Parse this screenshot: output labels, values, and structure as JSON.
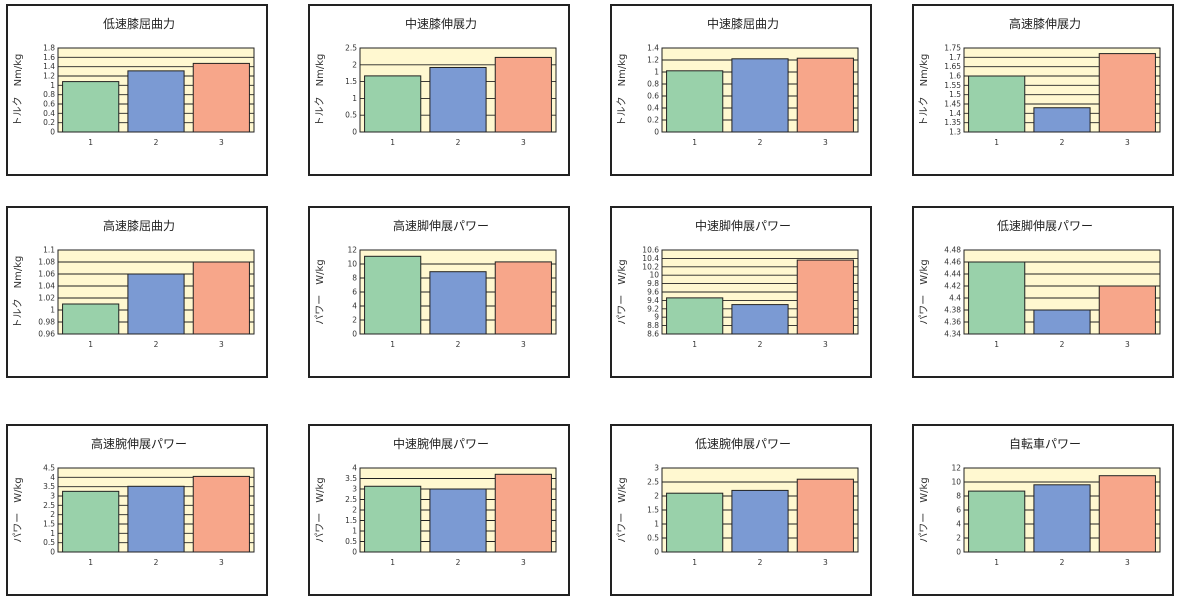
{
  "colors": {
    "plot_background": "#fff8d0",
    "gridline": "#222222",
    "series": [
      "#99d1aa",
      "#7b9ad3",
      "#f7a68a"
    ]
  },
  "chart_data": [
    {
      "type": "bar",
      "title": "低速膝屈曲力",
      "ylabel": "トルク　Nm/kg",
      "categories": [
        "1",
        "2",
        "3"
      ],
      "values": [
        1.08,
        1.31,
        1.47
      ],
      "ylim": [
        0,
        1.8
      ],
      "yticks": [
        0,
        0.2,
        0.4,
        0.6,
        0.8,
        1,
        1.2,
        1.4,
        1.6,
        1.8
      ],
      "grid": true,
      "legend": "none"
    },
    {
      "type": "bar",
      "title": "中速膝伸展力",
      "ylabel": "トルク　Nm/kg",
      "categories": [
        "1",
        "2",
        "3"
      ],
      "values": [
        1.67,
        1.92,
        2.22
      ],
      "ylim": [
        0,
        2.5
      ],
      "yticks": [
        0,
        0.5,
        1,
        1.5,
        2,
        2.5
      ],
      "grid": true,
      "legend": "none"
    },
    {
      "type": "bar",
      "title": "中速膝屈曲力",
      "ylabel": "トルク　Nm/kg",
      "categories": [
        "1",
        "2",
        "3"
      ],
      "values": [
        1.02,
        1.22,
        1.23
      ],
      "ylim": [
        0,
        1.4
      ],
      "yticks": [
        0,
        0.2,
        0.4,
        0.6,
        0.8,
        1,
        1.2,
        1.4
      ],
      "grid": true,
      "legend": "none"
    },
    {
      "type": "bar",
      "title": "高速膝伸展力",
      "ylabel": "トルク　Nm/kg",
      "categories": [
        "1",
        "2",
        "3"
      ],
      "values": [
        1.6,
        1.43,
        1.72
      ],
      "ylim": [
        1.3,
        1.75
      ],
      "yticks": [
        1.3,
        1.35,
        1.4,
        1.45,
        1.5,
        1.55,
        1.6,
        1.65,
        1.7,
        1.75
      ],
      "grid": true,
      "legend": "none"
    },
    {
      "type": "bar",
      "title": "高速膝屈曲力",
      "ylabel": "トルク　Nm/kg",
      "categories": [
        "1",
        "2",
        "3"
      ],
      "values": [
        1.01,
        1.06,
        1.08
      ],
      "ylim": [
        0.96,
        1.1
      ],
      "yticks": [
        0.96,
        0.98,
        1,
        1.02,
        1.04,
        1.06,
        1.08,
        1.1
      ],
      "grid": true,
      "legend": "none"
    },
    {
      "type": "bar",
      "title": "高速脚伸展パワー",
      "ylabel": "パワー　W/kg",
      "categories": [
        "1",
        "2",
        "3"
      ],
      "values": [
        11.1,
        8.9,
        10.3
      ],
      "ylim": [
        0,
        12
      ],
      "yticks": [
        0,
        2,
        4,
        6,
        8,
        10,
        12
      ],
      "grid": true,
      "legend": "none"
    },
    {
      "type": "bar",
      "title": "中速脚伸展パワー",
      "ylabel": "パワー　W/kg",
      "categories": [
        "1",
        "2",
        "3"
      ],
      "values": [
        9.46,
        9.3,
        10.36
      ],
      "ylim": [
        8.6,
        10.6
      ],
      "yticks": [
        8.6,
        8.8,
        9,
        9.2,
        9.4,
        9.6,
        9.8,
        10,
        10.2,
        10.4,
        10.6
      ],
      "grid": true,
      "legend": "none"
    },
    {
      "type": "bar",
      "title": "低速脚伸展パワー",
      "ylabel": "パワー　W/kg",
      "categories": [
        "1",
        "2",
        "3"
      ],
      "values": [
        4.46,
        4.38,
        4.42
      ],
      "ylim": [
        4.34,
        4.48
      ],
      "yticks": [
        4.34,
        4.36,
        4.38,
        4.4,
        4.42,
        4.44,
        4.46,
        4.48
      ],
      "grid": true,
      "legend": "none"
    },
    {
      "type": "bar",
      "title": "高速腕伸展パワー",
      "ylabel": "パワー　W/kg",
      "categories": [
        "1",
        "2",
        "3"
      ],
      "values": [
        3.25,
        3.52,
        4.05
      ],
      "ylim": [
        0,
        4.5
      ],
      "yticks": [
        0,
        0.5,
        1,
        1.5,
        2,
        2.5,
        3,
        3.5,
        4,
        4.5
      ],
      "grid": true,
      "legend": "none"
    },
    {
      "type": "bar",
      "title": "中速腕伸展パワー",
      "ylabel": "パワー　W/kg",
      "categories": [
        "1",
        "2",
        "3"
      ],
      "values": [
        3.13,
        3.0,
        3.7
      ],
      "ylim": [
        0,
        4
      ],
      "yticks": [
        0,
        0.5,
        1,
        1.5,
        2,
        2.5,
        3,
        3.5,
        4
      ],
      "grid": true,
      "legend": "none"
    },
    {
      "type": "bar",
      "title": "低速腕伸展パワー",
      "ylabel": "パワー　W/kg",
      "categories": [
        "1",
        "2",
        "3"
      ],
      "values": [
        2.1,
        2.2,
        2.6
      ],
      "ylim": [
        0,
        3
      ],
      "yticks": [
        0,
        0.5,
        1,
        1.5,
        2,
        2.5,
        3
      ],
      "grid": true,
      "legend": "none"
    },
    {
      "type": "bar",
      "title": "自転車パワー",
      "ylabel": "パワー　W/kg",
      "categories": [
        "1",
        "2",
        "3"
      ],
      "values": [
        8.7,
        9.6,
        10.9
      ],
      "ylim": [
        0,
        12
      ],
      "yticks": [
        0,
        2,
        4,
        6,
        8,
        10,
        12
      ],
      "grid": true,
      "legend": "none"
    }
  ]
}
